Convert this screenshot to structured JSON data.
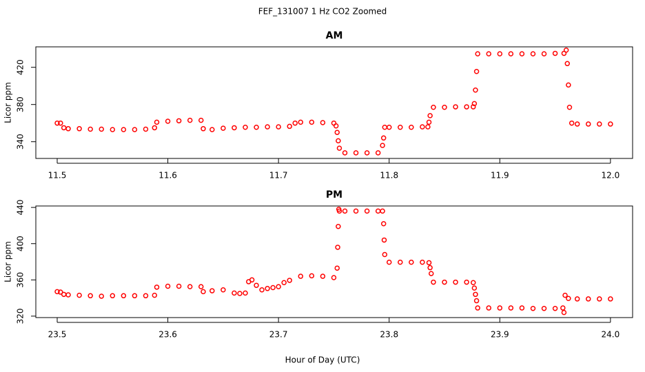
{
  "title": "FEF_131007  1 Hz CO2 Zoomed",
  "xlabel": "Hour of Day (UTC)",
  "chart_data": [
    {
      "type": "scatter",
      "title": "AM",
      "ylabel": "Licor ppm",
      "color": "#ff0000",
      "xlim": [
        11.4807,
        12.02
      ],
      "ylim": [
        322,
        442
      ],
      "xticks": [
        11.5,
        11.6,
        11.7,
        11.8,
        11.9,
        {
          "value": 12,
          "label": "12.0"
        }
      ],
      "yticks": [
        340,
        380,
        420
      ],
      "x": [
        11.5,
        11.503,
        11.506,
        11.51,
        11.52,
        11.53,
        11.54,
        11.55,
        11.56,
        11.57,
        11.58,
        11.588,
        11.59,
        11.6,
        11.61,
        11.62,
        11.63,
        11.632,
        11.64,
        11.65,
        11.66,
        11.67,
        11.68,
        11.69,
        11.7,
        11.71,
        11.715,
        11.72,
        11.73,
        11.74,
        11.75,
        11.752,
        11.753,
        11.754,
        11.755,
        11.76,
        11.77,
        11.78,
        11.79,
        11.794,
        11.795,
        11.796,
        11.8,
        11.81,
        11.82,
        11.83,
        11.835,
        11.836,
        11.837,
        11.84,
        11.85,
        11.86,
        11.87,
        11.876,
        11.877,
        11.878,
        11.879,
        11.88,
        11.89,
        11.9,
        11.91,
        11.92,
        11.93,
        11.94,
        11.95,
        11.958,
        11.96,
        11.961,
        11.962,
        11.963,
        11.965,
        11.97,
        11.98,
        11.99,
        12.0
      ],
      "values": [
        360,
        360,
        355,
        354,
        354,
        353.5,
        353.5,
        353,
        353,
        353,
        353.5,
        355,
        361,
        362,
        362.5,
        363,
        363,
        354,
        353,
        354.5,
        355,
        355.5,
        355.5,
        356,
        356,
        356.5,
        360,
        361,
        361,
        360.5,
        360,
        357,
        350,
        341,
        333,
        328,
        328,
        328,
        328,
        336,
        344,
        355.5,
        355.5,
        355.5,
        355.5,
        356,
        356,
        361,
        368,
        377,
        377,
        377.5,
        377.5,
        377.5,
        381,
        395.5,
        415.5,
        434.5,
        434.5,
        434.5,
        434.5,
        434.5,
        434.5,
        434.5,
        435,
        435,
        438.5,
        424,
        401,
        377,
        360,
        359,
        359,
        359,
        359
      ]
    },
    {
      "type": "scatter",
      "title": "PM",
      "ylabel": "Licor ppm",
      "color": "#ff0000",
      "xlim": [
        23.4807,
        24.02
      ],
      "ylim": [
        318.4,
        441.6
      ],
      "xticks": [
        23.5,
        23.6,
        23.7,
        23.8,
        23.9,
        {
          "value": 24,
          "label": "24.0"
        }
      ],
      "yticks": [
        320,
        360,
        400,
        440
      ],
      "x": [
        23.5,
        23.503,
        23.506,
        23.51,
        23.52,
        23.53,
        23.54,
        23.55,
        23.56,
        23.57,
        23.58,
        23.588,
        23.59,
        23.6,
        23.61,
        23.62,
        23.63,
        23.632,
        23.64,
        23.65,
        23.66,
        23.665,
        23.67,
        23.673,
        23.676,
        23.68,
        23.685,
        23.69,
        23.695,
        23.7,
        23.705,
        23.71,
        23.72,
        23.73,
        23.74,
        23.75,
        23.753,
        23.7535,
        23.754,
        23.7545,
        23.755,
        23.76,
        23.77,
        23.78,
        23.79,
        23.794,
        23.795,
        23.7955,
        23.796,
        23.8,
        23.81,
        23.82,
        23.83,
        23.836,
        23.837,
        23.838,
        23.84,
        23.85,
        23.86,
        23.87,
        23.876,
        23.877,
        23.878,
        23.879,
        23.88,
        23.89,
        23.9,
        23.91,
        23.92,
        23.93,
        23.94,
        23.95,
        23.957,
        23.958,
        23.959,
        23.962,
        23.97,
        23.98,
        23.99,
        24.0
      ],
      "values": [
        347,
        346.5,
        344,
        343.5,
        343,
        342.5,
        342,
        342.5,
        342.5,
        342.5,
        342.5,
        343,
        352,
        353,
        353,
        352.5,
        352.5,
        347,
        348,
        349,
        345.5,
        345,
        345.5,
        358,
        360,
        354,
        349,
        350.5,
        351.5,
        352.5,
        357,
        359.5,
        364,
        364.5,
        364,
        362.5,
        373,
        396,
        419,
        438,
        436,
        436,
        436,
        436,
        436,
        436,
        422,
        404,
        388,
        379.5,
        379.5,
        379.5,
        379.5,
        379,
        373.5,
        367,
        357.5,
        357.5,
        357.5,
        357.5,
        357,
        351,
        344,
        337,
        329,
        329,
        329,
        329,
        329,
        328.5,
        328.5,
        328.5,
        329,
        324,
        343,
        339.5,
        339,
        339,
        339,
        339
      ]
    }
  ]
}
